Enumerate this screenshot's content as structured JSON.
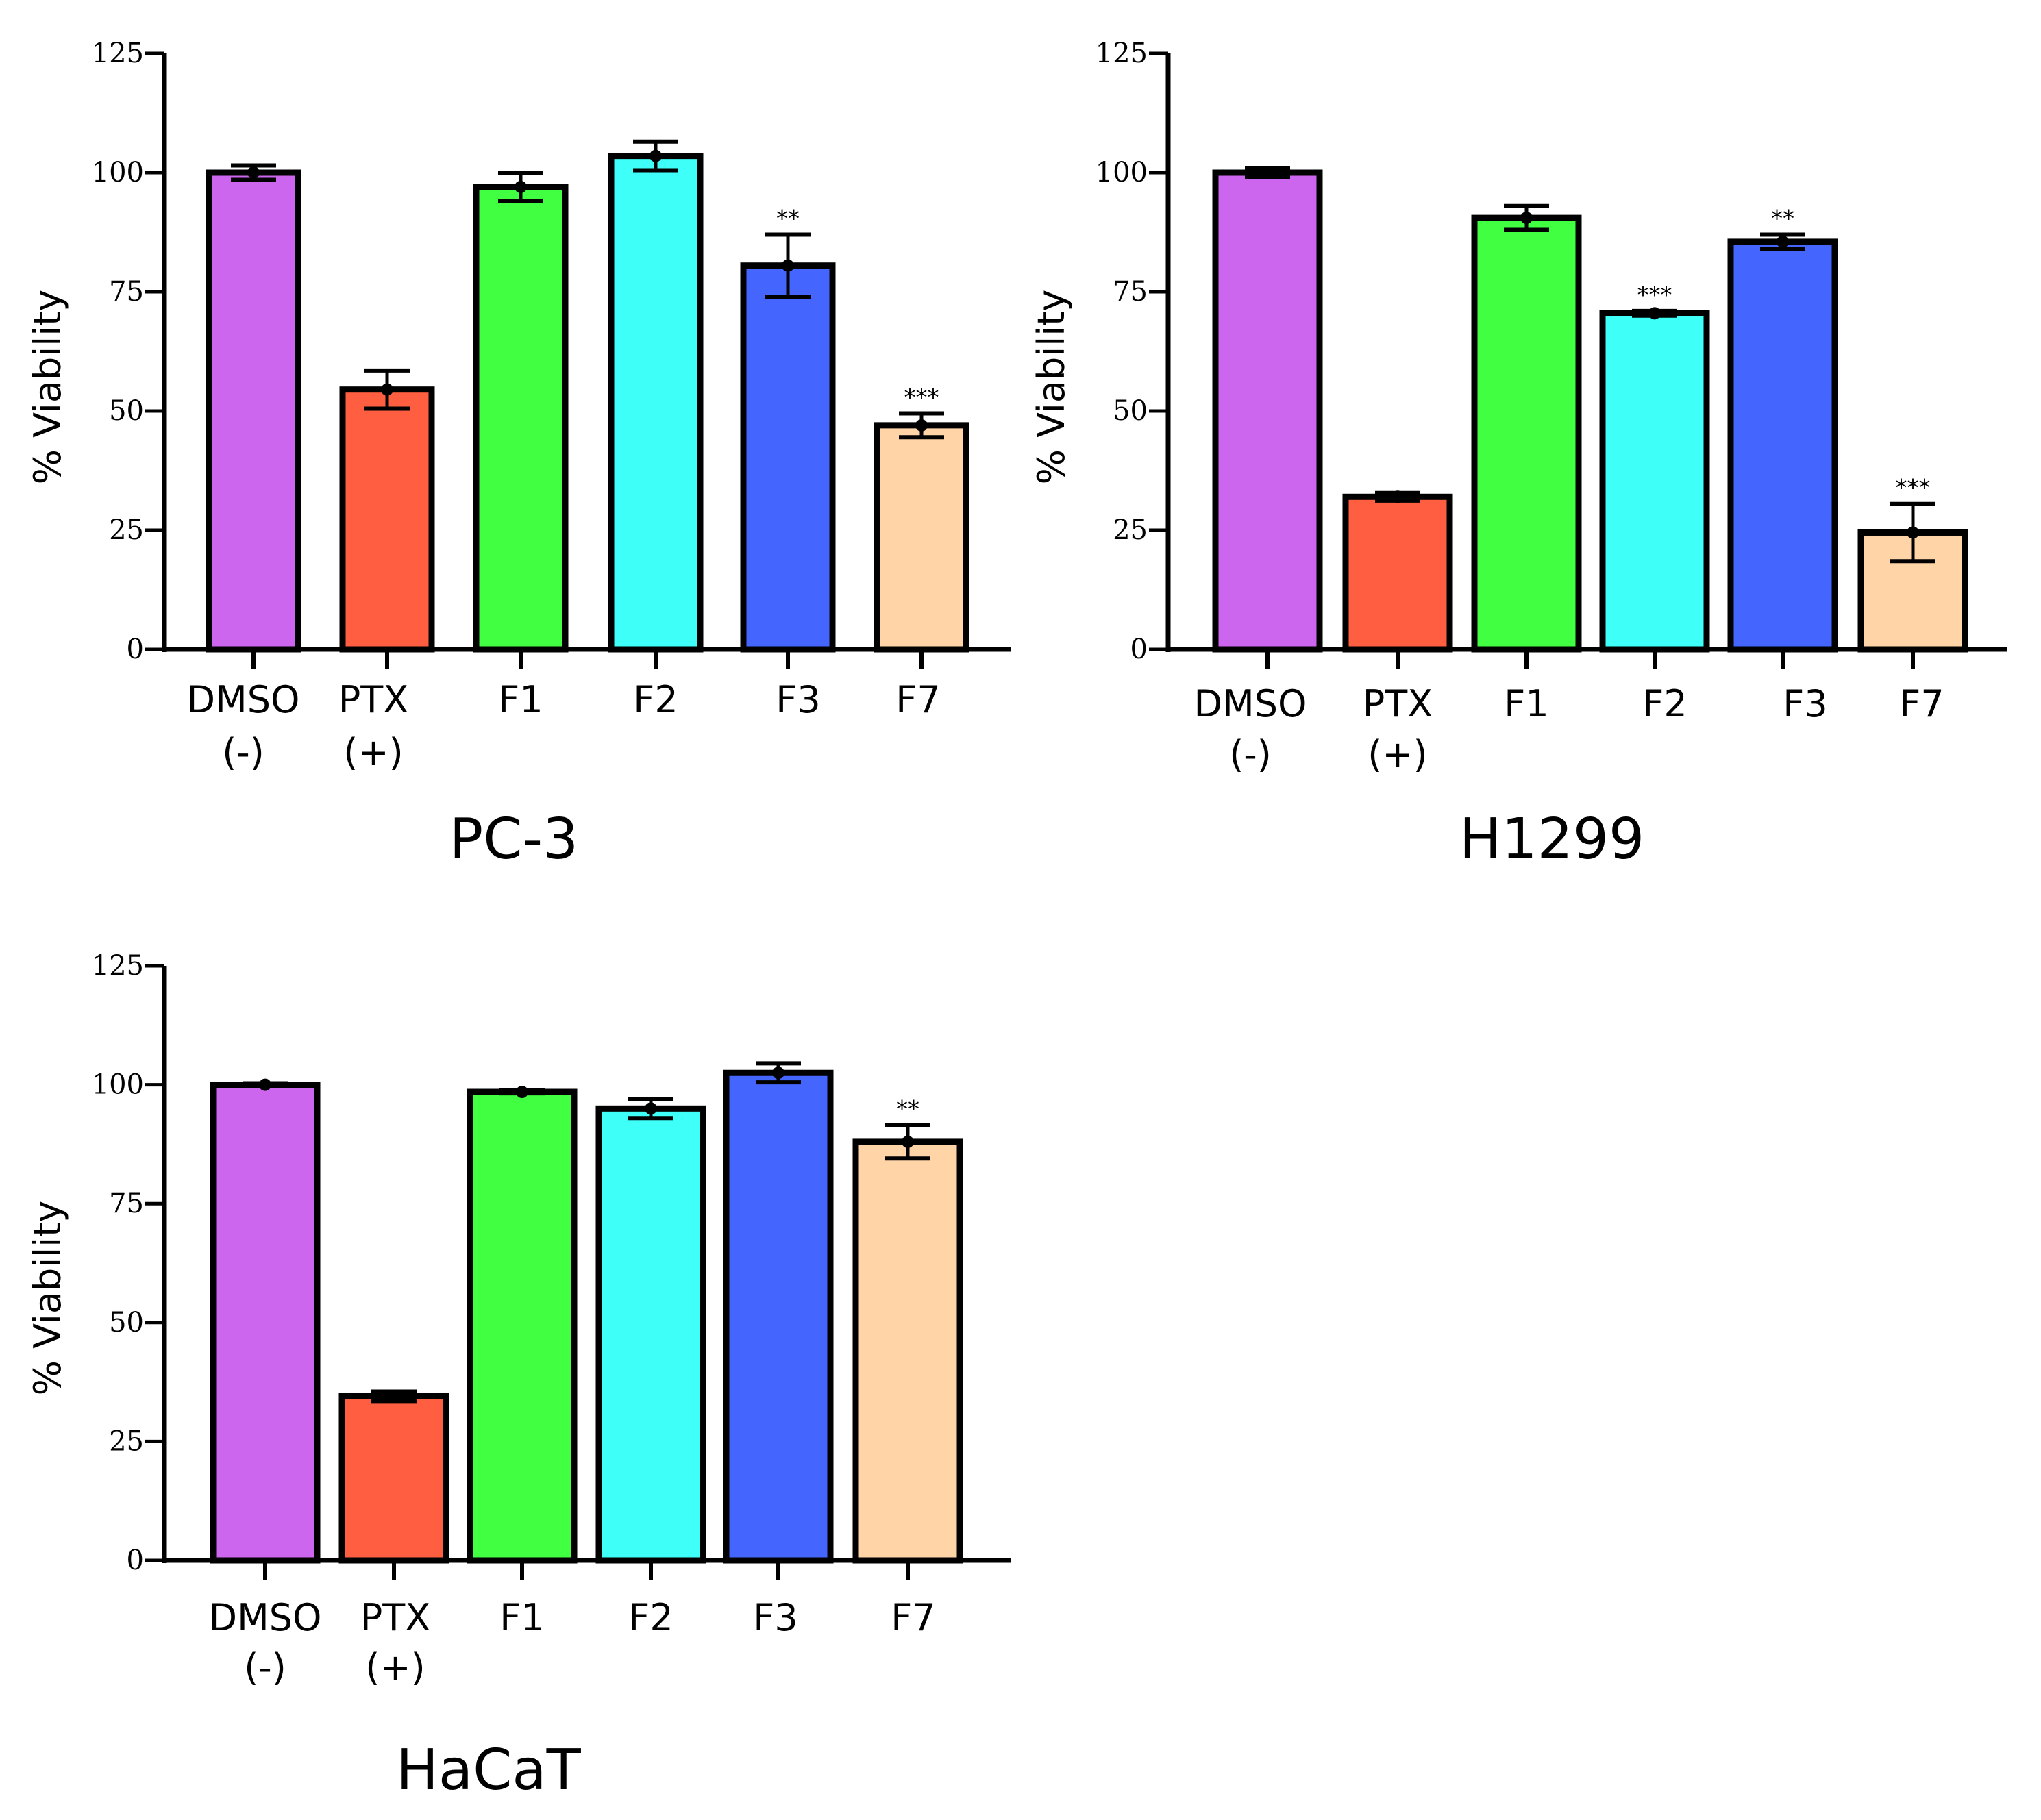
{
  "chart_data": [
    {
      "type": "bar",
      "title": "PC-3",
      "ylabel": "% Viability",
      "xlabel": "",
      "ylim": [
        0,
        125
      ],
      "yticks": [
        "0",
        "25",
        "50",
        "75",
        "100",
        "125"
      ],
      "categories": [
        [
          "DMSO",
          "(-)"
        ],
        [
          "PTX",
          "(+)"
        ],
        [
          "F1"
        ],
        [
          "F2"
        ],
        [
          "F3"
        ],
        [
          "F7"
        ]
      ],
      "values": [
        100,
        54.5,
        97,
        103.5,
        80.5,
        47
      ],
      "errors": [
        1.5,
        4,
        3,
        3,
        6.5,
        2.5
      ],
      "significance": [
        "",
        "",
        "",
        "",
        "**",
        "***"
      ],
      "colors": [
        "#cd66ee",
        "#ff5f40",
        "#41ff41",
        "#3ffff9",
        "#4466ff",
        "#ffd5a8"
      ]
    },
    {
      "type": "bar",
      "title": "H1299",
      "ylabel": "% Viability",
      "xlabel": "",
      "ylim": [
        0,
        125
      ],
      "yticks": [
        "0",
        "25",
        "50",
        "75",
        "100",
        "125"
      ],
      "categories": [
        [
          "DMSO",
          "(-)"
        ],
        [
          "PTX",
          "(+)"
        ],
        [
          "F1"
        ],
        [
          "F2"
        ],
        [
          "F3"
        ],
        [
          "F7"
        ]
      ],
      "values": [
        100,
        32,
        90.5,
        70.5,
        85.5,
        24.5
      ],
      "errors": [
        1,
        0.8,
        2.5,
        0.5,
        1.5,
        6
      ],
      "significance": [
        "",
        "",
        "",
        "***",
        "**",
        "***"
      ],
      "colors": [
        "#cd66ee",
        "#ff5f40",
        "#41ff41",
        "#3ffff9",
        "#4466ff",
        "#ffd5a8"
      ]
    },
    {
      "type": "bar",
      "title": "HaCaT",
      "ylabel": "% Viability",
      "xlabel": "",
      "ylim": [
        0,
        125
      ],
      "yticks": [
        "0",
        "25",
        "50",
        "75",
        "100",
        "125"
      ],
      "categories": [
        [
          "DMSO",
          "(-)"
        ],
        [
          "PTX",
          "(+)"
        ],
        [
          "F1"
        ],
        [
          "F2"
        ],
        [
          "F3"
        ],
        [
          "F7"
        ]
      ],
      "values": [
        100,
        34.5,
        98.5,
        95,
        102.5,
        88
      ],
      "errors": [
        0.3,
        1,
        0.3,
        2,
        2,
        3.5
      ],
      "significance": [
        "",
        "",
        "",
        "",
        "",
        "**"
      ],
      "colors": [
        "#cd66ee",
        "#ff5f40",
        "#41ff41",
        "#3ffff9",
        "#4466ff",
        "#ffd5a8"
      ]
    }
  ]
}
